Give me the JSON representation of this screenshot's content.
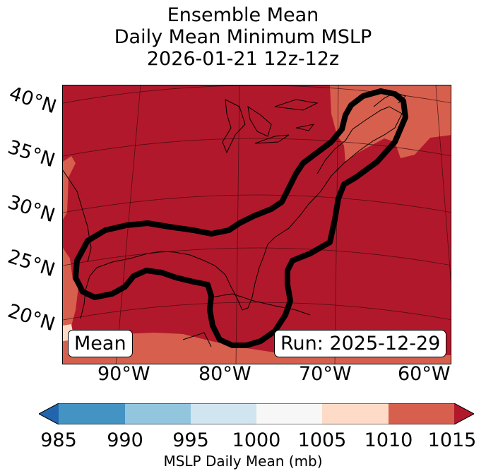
{
  "title": {
    "line1": "Ensemble Mean",
    "line2": "Daily Mean Minimum MSLP",
    "line3": "2026-01-21 12z-12z"
  },
  "map": {
    "lat_labels": [
      "40°N",
      "35°N",
      "30°N",
      "25°N",
      "20°N"
    ],
    "lon_labels": [
      "90°W",
      "80°W",
      "70°W",
      "60°W"
    ],
    "mean_label": "Mean",
    "run_label": "Run: 2025-12-29"
  },
  "colorbar": {
    "ticks": [
      "985",
      "990",
      "995",
      "1000",
      "1005",
      "1010",
      "1015"
    ],
    "label": "MSLP Daily Mean (mb)",
    "colors": [
      "#2166ac",
      "#4393c3",
      "#92c5de",
      "#d1e5f0",
      "#f7f7f7",
      "#fddbc7",
      "#d6604d",
      "#b2182b"
    ]
  }
}
